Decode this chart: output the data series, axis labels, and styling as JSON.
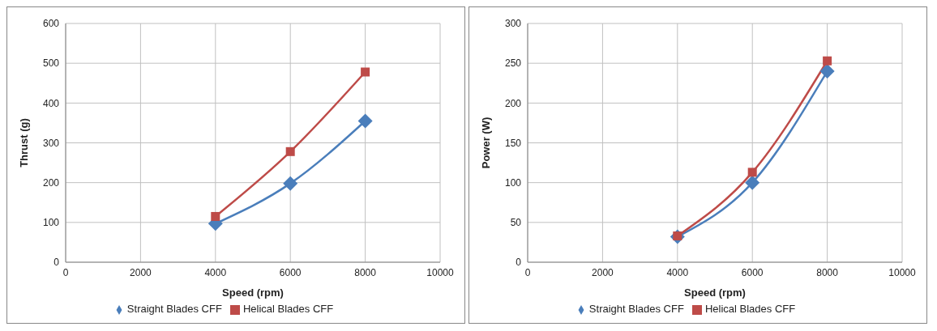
{
  "chart_data": [
    {
      "type": "line",
      "xlabel": "Speed (rpm)",
      "ylabel": "Thrust (g)",
      "x": [
        4000,
        6000,
        8000
      ],
      "xlim": [
        0,
        10000
      ],
      "xticks": [
        0,
        2000,
        4000,
        6000,
        8000,
        10000
      ],
      "ylim": [
        0,
        600
      ],
      "yticks": [
        0,
        100,
        200,
        300,
        400,
        500,
        600
      ],
      "grid": true,
      "legend": "bottom",
      "series": [
        {
          "name": "Straight Blades CFF",
          "color": "#4a7ebb",
          "values": [
            97,
            198,
            355
          ],
          "marker": "diamond"
        },
        {
          "name": "Helical Blades CFF",
          "color": "#be4b48",
          "values": [
            115,
            278,
            478
          ],
          "marker": "square"
        }
      ]
    },
    {
      "type": "line",
      "xlabel": "Speed (rpm)",
      "ylabel": "Power (W)",
      "x": [
        4000,
        6000,
        8000
      ],
      "xlim": [
        0,
        10000
      ],
      "xticks": [
        0,
        2000,
        4000,
        6000,
        8000,
        10000
      ],
      "ylim": [
        0,
        300
      ],
      "yticks": [
        0,
        50,
        100,
        150,
        200,
        250,
        300
      ],
      "grid": true,
      "legend": "bottom",
      "series": [
        {
          "name": "Straight Blades CFF",
          "color": "#4a7ebb",
          "values": [
            32,
            100,
            240
          ],
          "marker": "diamond"
        },
        {
          "name": "Helical Blades CFF",
          "color": "#be4b48",
          "values": [
            33,
            113,
            253
          ],
          "marker": "square"
        }
      ]
    }
  ]
}
